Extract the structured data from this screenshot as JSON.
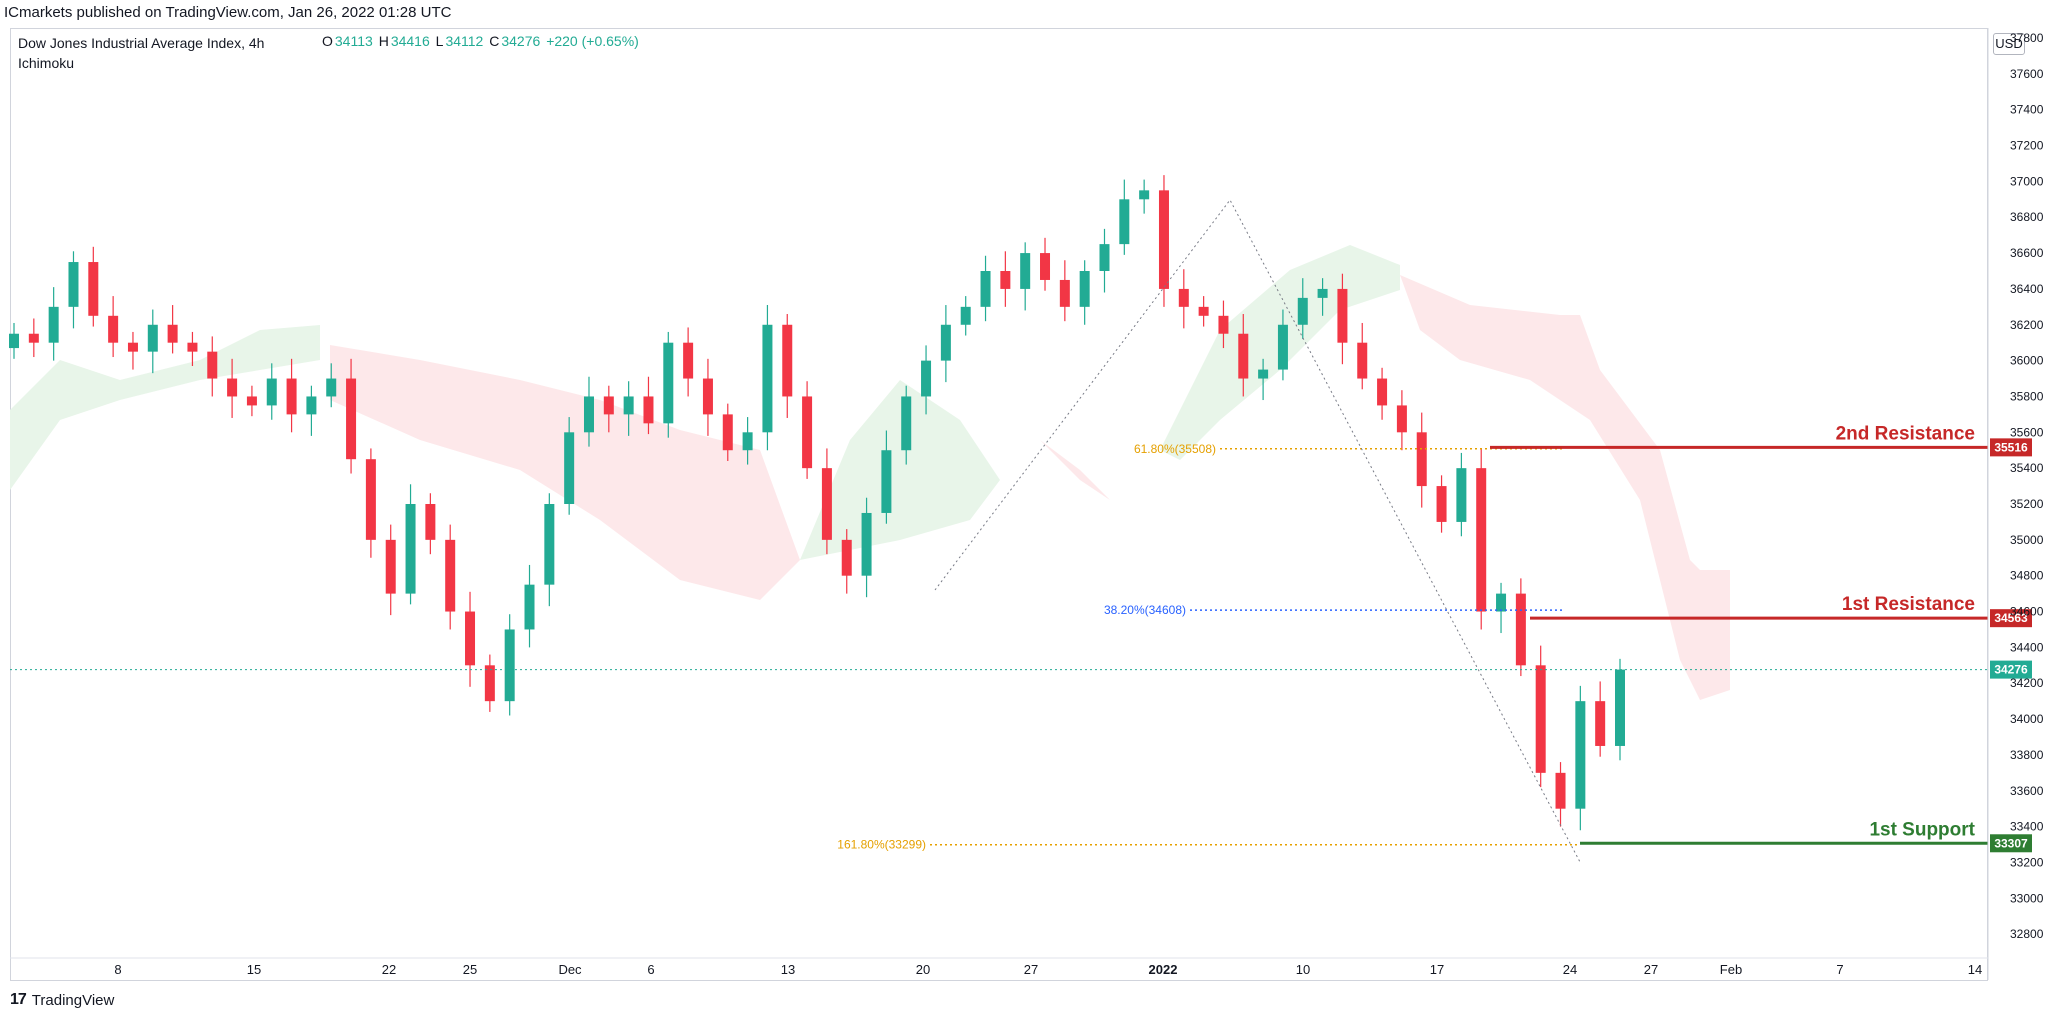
{
  "header": {
    "publisher": "ICmarkets published on TradingView.com, Jan 26, 2022 01:28 UTC"
  },
  "legend": {
    "symbol": "Dow Jones Industrial Average Index, 4h",
    "indicator": "Ichimoku",
    "ohlc": {
      "o_label": "O",
      "o": "34113",
      "h_label": "H",
      "h": "34416",
      "l_label": "L",
      "l": "34112",
      "c_label": "C",
      "c": "34276",
      "change": "+220 (+0.65%)"
    }
  },
  "currency": "USD",
  "footer": {
    "brand": "TradingView"
  },
  "colors": {
    "up": "#22ab94",
    "down": "#f23645",
    "kumo_bull": "#e8f5e9",
    "kumo_bear": "#fde8ea",
    "resistance": "#c62828",
    "support": "#2e7d32",
    "fib": "#e5a000",
    "fib_blue": "#2962ff"
  },
  "chart_data": {
    "type": "candlestick",
    "ylim": [
      32600,
      37800
    ],
    "y_ticks": [
      "32800",
      "33000",
      "33200",
      "33400",
      "33600",
      "33800",
      "34000",
      "34200",
      "34400",
      "34600",
      "34800",
      "35000",
      "35200",
      "35400",
      "35600",
      "35800",
      "36000",
      "36200",
      "36400",
      "36600",
      "36800",
      "37000",
      "37200",
      "37400",
      "37600",
      "37800"
    ],
    "x_ticks": [
      "8",
      "15",
      "22",
      "25",
      "Dec",
      "6",
      "13",
      "20",
      "27",
      "2022",
      "10",
      "17",
      "24",
      "27",
      "Feb",
      "7",
      "14"
    ],
    "close_series": [
      36150,
      36100,
      36300,
      36550,
      36250,
      36100,
      36050,
      36200,
      36100,
      36050,
      35900,
      35800,
      35750,
      35900,
      35700,
      35800,
      35900,
      35450,
      35000,
      34700,
      35200,
      35000,
      34600,
      34300,
      34100,
      34500,
      34750,
      35200,
      35600,
      35800,
      35700,
      35800,
      35650,
      36100,
      35900,
      35700,
      35500,
      35600,
      36200,
      35800,
      35400,
      35000,
      34800,
      35150,
      35500,
      35800,
      36000,
      36200,
      36300,
      36500,
      36400,
      36600,
      36450,
      36300,
      36500,
      36650,
      36900,
      36950,
      36400,
      36300,
      36250,
      36150,
      35900,
      35950,
      36200,
      36350,
      36400,
      36100,
      35900,
      35750,
      35600,
      35300,
      35100,
      35400,
      34600,
      34700,
      34300,
      33700,
      33500,
      34100,
      33850,
      34276
    ],
    "levels": [
      {
        "label": "2nd Resistance",
        "value": "35516"
      },
      {
        "label": "1st Resistance",
        "value": "34563"
      },
      {
        "label": "1st Support",
        "value": "33307"
      }
    ],
    "current_price": "34276",
    "fib_labels": [
      {
        "text": "61.80%(35508)",
        "value": 35508
      },
      {
        "text": "38.20%(34608)",
        "value": 34608
      },
      {
        "text": "161.80%(33299)",
        "value": 33299
      }
    ]
  }
}
